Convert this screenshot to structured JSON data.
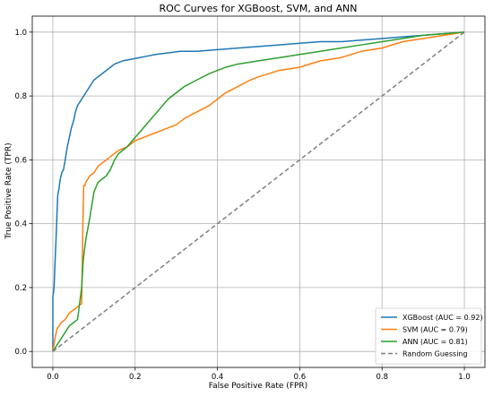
{
  "chart_data": {
    "type": "line",
    "title": "ROC Curves for XGBoost, SVM, and ANN",
    "xlabel": "False Positive Rate (FPR)",
    "ylabel": "True Positive Rate (TPR)",
    "xlim": [
      -0.05,
      1.05
    ],
    "ylim": [
      -0.05,
      1.05
    ],
    "xticks": [
      0.0,
      0.2,
      0.4,
      0.6,
      0.8,
      1.0
    ],
    "yticks": [
      0.0,
      0.2,
      0.4,
      0.6,
      0.8,
      1.0
    ],
    "xtick_labels": [
      "0.0",
      "0.2",
      "0.4",
      "0.6",
      "0.8",
      "1.0"
    ],
    "ytick_labels": [
      "0.0",
      "0.2",
      "0.4",
      "0.6",
      "0.8",
      "1.0"
    ],
    "grid": true,
    "legend_position": "lower right",
    "series": [
      {
        "name": "XGBoost (AUC = 0.92)",
        "color": "#1f77b4",
        "style": "solid",
        "x": [
          0,
          0,
          0.003,
          0.006,
          0.008,
          0.01,
          0.012,
          0.015,
          0.018,
          0.022,
          0.026,
          0.03,
          0.035,
          0.04,
          0.045,
          0.05,
          0.055,
          0.06,
          0.065,
          0.07,
          0.075,
          0.08,
          0.09,
          0.1,
          0.11,
          0.12,
          0.13,
          0.14,
          0.15,
          0.17,
          0.19,
          0.21,
          0.23,
          0.25,
          0.28,
          0.31,
          0.35,
          0.4,
          0.45,
          0.5,
          0.55,
          0.6,
          0.65,
          0.7,
          0.75,
          0.8,
          0.85,
          0.9,
          0.95,
          1.0
        ],
        "y": [
          0,
          0.17,
          0.2,
          0.3,
          0.36,
          0.43,
          0.49,
          0.51,
          0.54,
          0.56,
          0.57,
          0.6,
          0.64,
          0.67,
          0.7,
          0.72,
          0.75,
          0.77,
          0.78,
          0.79,
          0.8,
          0.81,
          0.83,
          0.85,
          0.86,
          0.87,
          0.88,
          0.89,
          0.9,
          0.91,
          0.915,
          0.92,
          0.925,
          0.93,
          0.935,
          0.94,
          0.94,
          0.945,
          0.95,
          0.955,
          0.96,
          0.965,
          0.97,
          0.97,
          0.975,
          0.98,
          0.985,
          0.99,
          0.995,
          1.0
        ]
      },
      {
        "name": "SVM (AUC = 0.79)",
        "color": "#ff7f0e",
        "style": "solid",
        "x": [
          0,
          0.005,
          0.01,
          0.02,
          0.03,
          0.04,
          0.05,
          0.06,
          0.07,
          0.073,
          0.075,
          0.078,
          0.08,
          0.085,
          0.09,
          0.1,
          0.11,
          0.12,
          0.13,
          0.14,
          0.15,
          0.16,
          0.18,
          0.19,
          0.2,
          0.22,
          0.24,
          0.26,
          0.28,
          0.3,
          0.32,
          0.35,
          0.38,
          0.4,
          0.42,
          0.45,
          0.48,
          0.5,
          0.55,
          0.6,
          0.65,
          0.7,
          0.75,
          0.8,
          0.85,
          0.9,
          0.95,
          1.0
        ],
        "y": [
          0,
          0.04,
          0.07,
          0.09,
          0.1,
          0.12,
          0.13,
          0.14,
          0.15,
          0.4,
          0.52,
          0.52,
          0.53,
          0.54,
          0.55,
          0.56,
          0.58,
          0.59,
          0.6,
          0.61,
          0.62,
          0.63,
          0.64,
          0.65,
          0.66,
          0.67,
          0.68,
          0.69,
          0.7,
          0.71,
          0.73,
          0.75,
          0.77,
          0.79,
          0.81,
          0.83,
          0.85,
          0.86,
          0.88,
          0.89,
          0.91,
          0.92,
          0.94,
          0.95,
          0.97,
          0.98,
          0.99,
          1.0
        ]
      },
      {
        "name": "ANN (AUC = 0.81)",
        "color": "#2ca02c",
        "style": "solid",
        "x": [
          0,
          0.01,
          0.02,
          0.03,
          0.04,
          0.05,
          0.06,
          0.07,
          0.073,
          0.075,
          0.08,
          0.09,
          0.1,
          0.11,
          0.12,
          0.13,
          0.14,
          0.15,
          0.16,
          0.18,
          0.2,
          0.22,
          0.24,
          0.26,
          0.28,
          0.3,
          0.32,
          0.35,
          0.38,
          0.4,
          0.42,
          0.45,
          0.5,
          0.55,
          0.6,
          0.65,
          0.7,
          0.75,
          0.8,
          0.85,
          0.9,
          0.95,
          1.0
        ],
        "y": [
          0,
          0.02,
          0.04,
          0.06,
          0.08,
          0.09,
          0.1,
          0.2,
          0.27,
          0.3,
          0.35,
          0.42,
          0.5,
          0.53,
          0.54,
          0.55,
          0.57,
          0.6,
          0.62,
          0.64,
          0.67,
          0.7,
          0.73,
          0.76,
          0.79,
          0.81,
          0.83,
          0.85,
          0.87,
          0.88,
          0.89,
          0.9,
          0.91,
          0.92,
          0.93,
          0.94,
          0.95,
          0.96,
          0.97,
          0.98,
          0.99,
          0.995,
          1.0
        ]
      },
      {
        "name": "Random Guessing",
        "color": "#7f7f7f",
        "style": "dashed",
        "x": [
          0,
          1
        ],
        "y": [
          0,
          1
        ]
      }
    ]
  }
}
